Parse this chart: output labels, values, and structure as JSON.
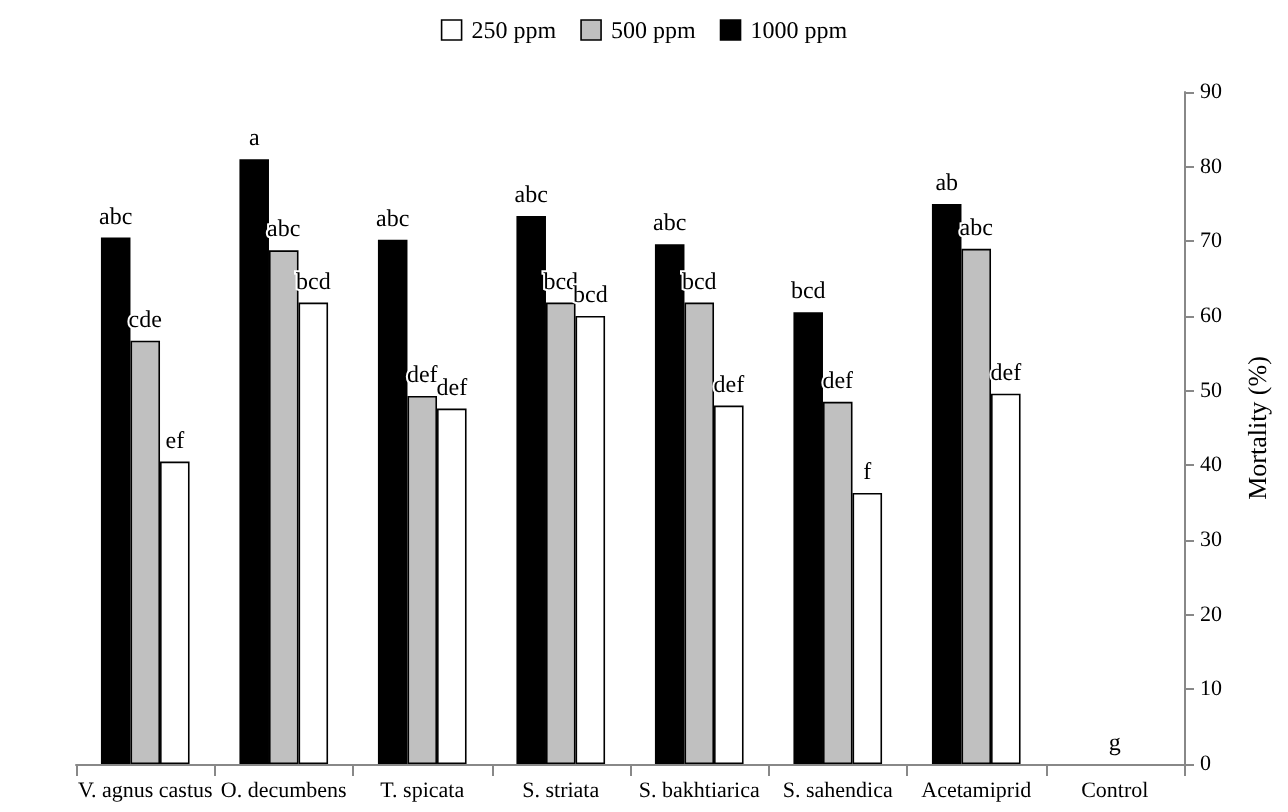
{
  "chart_data": {
    "type": "bar",
    "ylabel": "Mortality (%)",
    "categories": [
      "V. agnus castus",
      "O. decumbens",
      "T. spicata",
      "S. striata",
      "S. bakhtiarica",
      "S. sahendica",
      "Acetamiprid",
      "Control"
    ],
    "series": [
      {
        "name": "1000 ppm",
        "color": "#000000",
        "values": [
          70.5,
          81,
          70.2,
          73.4,
          69.6,
          60.5,
          75,
          0
        ],
        "value_labels": [
          "abc",
          "a",
          "abc",
          "abc",
          "abc",
          "bcd",
          "ab",
          null
        ]
      },
      {
        "name": "500 ppm",
        "color": "#c0c0c0",
        "values": [
          56.7,
          68.8,
          49.3,
          61.8,
          61.8,
          48.5,
          69,
          0
        ],
        "value_labels": [
          "cde",
          "abc",
          "def",
          "bcd",
          "bcd",
          "def",
          "abc",
          "g"
        ]
      },
      {
        "name": "250 ppm",
        "color": "#ffffff",
        "values": [
          40.5,
          61.8,
          47.6,
          60,
          48,
          36.3,
          49.6,
          0
        ],
        "value_labels": [
          "ef",
          "bcd",
          "def",
          "bcd",
          "def",
          "f",
          "def",
          null
        ]
      }
    ],
    "ylim": [
      0,
      90
    ],
    "yticks": [
      0,
      10,
      20,
      30,
      40,
      50,
      60,
      70,
      80,
      90
    ],
    "grid": false,
    "legend": "top"
  }
}
